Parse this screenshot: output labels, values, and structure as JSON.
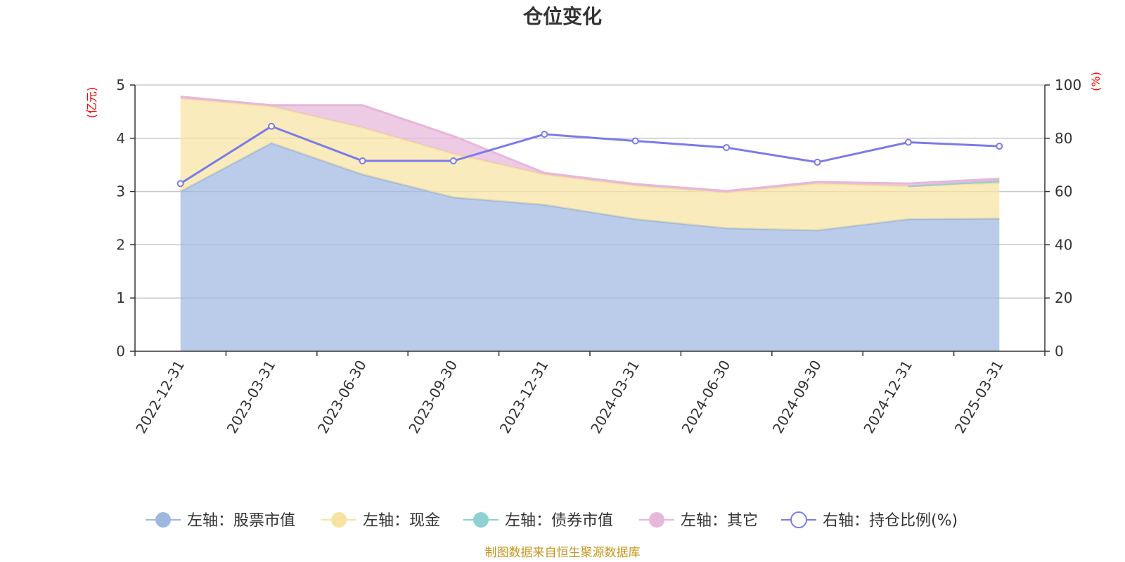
{
  "title": "仓位变化",
  "source": "制图数据来自恒生聚源数据库",
  "chart_data": {
    "type": "area",
    "categories": [
      "2022-12-31",
      "2023-03-31",
      "2023-06-30",
      "2023-09-30",
      "2023-12-31",
      "2024-03-31",
      "2024-06-30",
      "2024-09-30",
      "2024-12-31",
      "2025-03-31"
    ],
    "left_axis": {
      "unit": "(亿元)",
      "ylim": [
        0,
        5
      ],
      "ticks": [
        0,
        1,
        2,
        3,
        4,
        5
      ]
    },
    "right_axis": {
      "unit": "(%)",
      "ylim": [
        0,
        100
      ],
      "ticks": [
        0,
        20,
        40,
        60,
        80,
        100
      ]
    },
    "grid": true,
    "legend_position": "bottom",
    "series": [
      {
        "name": "左轴：股票市值",
        "axis": "left",
        "kind": "stacked-area",
        "color": "#9fb8e0",
        "values": [
          3.0,
          3.91,
          3.32,
          2.89,
          2.75,
          2.48,
          2.31,
          2.27,
          2.48,
          2.49
        ]
      },
      {
        "name": "左轴：现金",
        "axis": "left",
        "kind": "stacked-area",
        "color": "#f6e3a1",
        "values": [
          1.75,
          0.69,
          0.88,
          0.82,
          0.57,
          0.63,
          0.67,
          0.88,
          0.62,
          0.67
        ]
      },
      {
        "name": "左轴：债券市值",
        "axis": "left",
        "kind": "stacked-area",
        "color": "#8fd0d3",
        "values": [
          null,
          null,
          null,
          null,
          null,
          null,
          null,
          null,
          0.0,
          0.04
        ]
      },
      {
        "name": "左轴：其它",
        "axis": "left",
        "kind": "stacked-area",
        "color": "#e7b7d9",
        "values": [
          0.03,
          0.02,
          0.42,
          0.33,
          0.03,
          0.03,
          0.03,
          0.03,
          0.05,
          0.04
        ]
      },
      {
        "name": "右轴：持仓比例(%)",
        "axis": "right",
        "kind": "line",
        "color": "#7b7bea",
        "values": [
          63,
          84.5,
          71.5,
          71.5,
          81.5,
          79,
          76.5,
          71,
          78.5,
          77
        ]
      }
    ]
  }
}
